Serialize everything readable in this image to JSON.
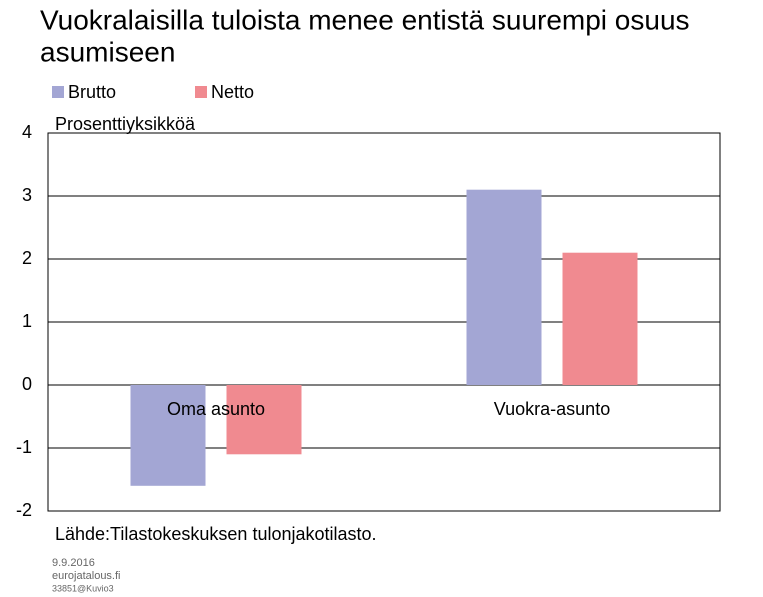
{
  "chart_data": {
    "type": "bar",
    "title": [
      "Vuokralaisilla tuloista menee entistä suurempi osuus",
      "asumiseen"
    ],
    "y_label": "Prosenttiyksikköä",
    "categories": [
      "Oma asunto",
      "Vuokra-asunto"
    ],
    "series": [
      {
        "name": "Brutto",
        "color": "#a3a6d4",
        "values": [
          -1.6,
          3.1
        ]
      },
      {
        "name": "Netto",
        "color": "#f08a90",
        "values": [
          -1.1,
          2.1
        ]
      }
    ],
    "ylim": [
      -2,
      4
    ],
    "yticks": [
      -2,
      -1,
      0,
      1,
      2,
      3,
      4
    ],
    "grid": true,
    "source": "Lähde:Tilastokeskuksen tulonjakotilasto.",
    "footer": [
      "9.9.2016",
      "eurojatalous.fi",
      "33851@Kuvio3"
    ]
  }
}
